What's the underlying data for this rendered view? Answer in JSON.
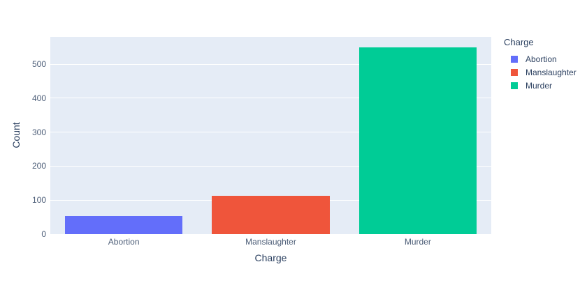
{
  "chart_data": {
    "type": "bar",
    "title": "",
    "xlabel": "Charge",
    "ylabel": "Count",
    "categories": [
      "Abortion",
      "Manslaughter",
      "Murder"
    ],
    "values": [
      53,
      113,
      550
    ],
    "bar_colors": [
      "#636EFA",
      "#EF553B",
      "#00CC96"
    ],
    "ylim": [
      0,
      580
    ],
    "yticks": [
      0,
      100,
      200,
      300,
      400,
      500
    ],
    "grid": true,
    "legend": {
      "title": "Charge",
      "position": "right",
      "entries": [
        {
          "label": "Abortion",
          "color": "#636EFA"
        },
        {
          "label": "Manslaughter",
          "color": "#EF553B"
        },
        {
          "label": "Murder",
          "color": "#00CC96"
        }
      ]
    },
    "colors": {
      "plot_bg": "#E5ECF6",
      "paper_bg": "#FFFFFF",
      "grid": "#FFFFFF",
      "axis_title_text": "#2A3F5F",
      "tick_text": "#4C5D77"
    }
  }
}
